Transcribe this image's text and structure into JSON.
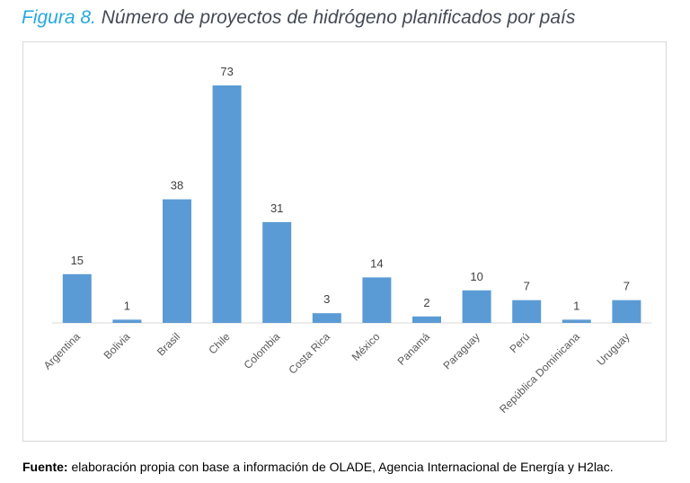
{
  "title": {
    "figure_label": "Figura 8.",
    "text": "Número de proyectos de hidrógeno planificados por país"
  },
  "source": {
    "label": "Fuente:",
    "text": " elaboración propia con base a información de OLADE, Agencia Internacional de Energía y H2lac."
  },
  "colors": {
    "bar": "#5b9bd5",
    "title_accent": "#26a9e0",
    "axis": "#d9d9d9"
  },
  "chart_data": {
    "type": "bar",
    "categories": [
      "Argentina",
      "Bolivia",
      "Brasil",
      "Chile",
      "Colombia",
      "Costa Rica",
      "México",
      "Panamá",
      "Paraguay",
      "Perú",
      "República Dominicana",
      "Uruguay"
    ],
    "values": [
      15,
      1,
      38,
      73,
      31,
      3,
      14,
      2,
      10,
      7,
      1,
      7
    ],
    "data_labels": true,
    "ylim": [
      0,
      73
    ],
    "grid": false,
    "legend": "none"
  }
}
